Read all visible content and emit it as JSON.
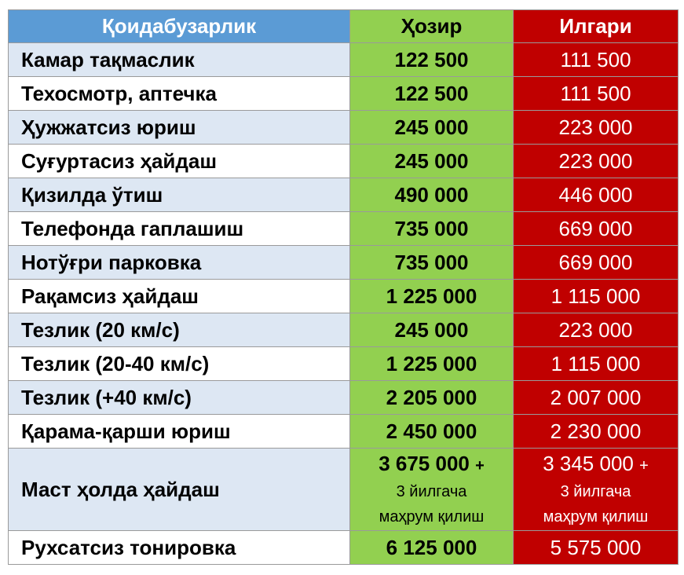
{
  "header": {
    "violation": "Қоидабузарлик",
    "now": "Ҳозир",
    "before": "Илгари"
  },
  "rows": [
    {
      "violation": "Камар тақмаслик",
      "now": "122 500",
      "before": "111 500"
    },
    {
      "violation": "Техосмотр, аптечка",
      "now": "122 500",
      "before": "111 500"
    },
    {
      "violation": "Ҳужжатсиз юриш",
      "now": "245 000",
      "before": "223 000"
    },
    {
      "violation": "Суғуртасиз ҳайдаш",
      "now": "245 000",
      "before": "223 000"
    },
    {
      "violation": "Қизилда ўтиш",
      "now": "490 000",
      "before": "446 000"
    },
    {
      "violation": "Телефонда гаплашиш",
      "now": "735 000",
      "before": "669 000"
    },
    {
      "violation": "Нотўғри парковка",
      "now": "735 000",
      "before": "669 000"
    },
    {
      "violation": "Рақамсиз ҳайдаш",
      "now": "1 225 000",
      "before": "1 115 000"
    },
    {
      "violation": "Тезлик (20 км/с)",
      "now": "245 000",
      "before": "223 000"
    },
    {
      "violation": "Тезлик (20-40 км/с)",
      "now": "1 225 000",
      "before": "1 115 000"
    },
    {
      "violation": "Тезлик (+40 км/с)",
      "now": "2 205 000",
      "before": "2 007 000"
    },
    {
      "violation": "Қарама-қарши юриш",
      "now": "2 450 000",
      "before": "2 230 000"
    }
  ],
  "drunk": {
    "violation": "Маст ҳолда ҳайдаш",
    "now_amount": "3 675 000",
    "before_amount": "3 345 000",
    "plus": "+",
    "deprivation_line1": "3 йилгача",
    "deprivation_line2": "маҳрум қилиш"
  },
  "last": {
    "violation": "Рухсатсиз тонировка",
    "now": "6 125 000",
    "before": "5 575 000"
  },
  "colors": {
    "header_blue": "#5b9bd5",
    "now_green": "#92d050",
    "before_red": "#c00000",
    "row_stripe": "#dde7f3"
  }
}
